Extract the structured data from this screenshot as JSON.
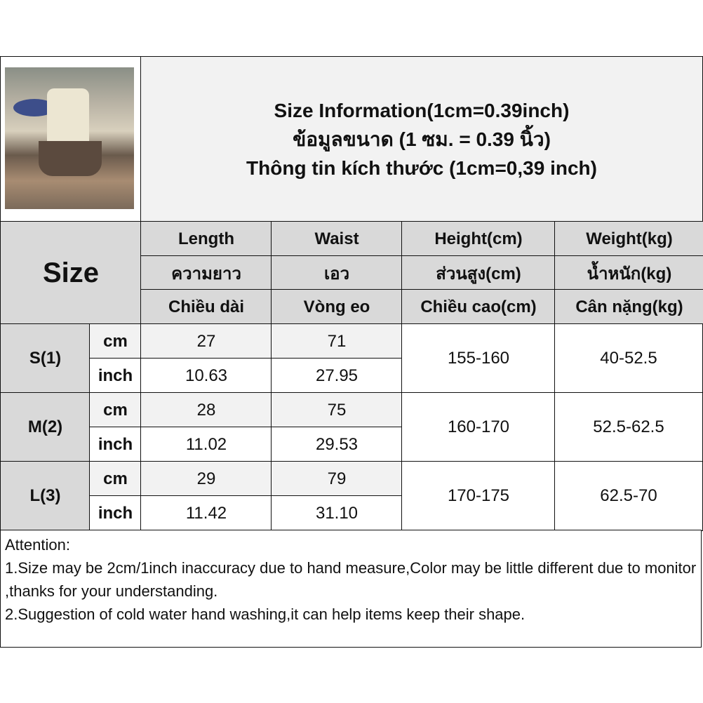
{
  "title": {
    "line1": "Size Information(1cm=0.39inch)",
    "line2": "ข้อมูลขนาด (1 ซม. = 0.39 นิ้ว)",
    "line3": "Thông tin kích thước (1cm=0,39 inch)"
  },
  "header": {
    "size_label": "Size",
    "columns": [
      {
        "en": "Length",
        "th": "ความยาว",
        "vi": "Chiều dài"
      },
      {
        "en": "Waist",
        "th": "เอว",
        "vi": "Vòng eo"
      },
      {
        "en": "Height(cm)",
        "th": "ส่วนสูง(cm)",
        "vi": "Chiều cao(cm)"
      },
      {
        "en": "Weight(kg)",
        "th": "น้ำหนัก(kg)",
        "vi": "Cân nặng(kg)"
      }
    ]
  },
  "rows": [
    {
      "size": "S(1)",
      "cm_label": "cm",
      "inch_label": "inch",
      "length_cm": "27",
      "length_inch": "10.63",
      "waist_cm": "71",
      "waist_inch": "27.95",
      "height": "155-160",
      "weight": "40-52.5"
    },
    {
      "size": "M(2)",
      "cm_label": "cm",
      "inch_label": "inch",
      "length_cm": "28",
      "length_inch": "11.02",
      "waist_cm": "75",
      "waist_inch": "29.53",
      "height": "160-170",
      "weight": "52.5-62.5"
    },
    {
      "size": "L(3)",
      "cm_label": "cm",
      "inch_label": "inch",
      "length_cm": "29",
      "length_inch": "11.42",
      "waist_cm": "79",
      "waist_inch": "31.10",
      "height": "170-175",
      "weight": "62.5-70"
    }
  ],
  "attention": {
    "heading": "Attention:",
    "line1": "1.Size may be 2cm/1inch inaccuracy due to hand measure,Color may be little different due to monitor ,thanks for your understanding.",
    "line2": "2.Suggestion of cold water hand washing,it can help items keep their shape."
  },
  "colors": {
    "header_bg": "#d9d9d9",
    "light_bg": "#f2f2f2",
    "border": "#111111"
  }
}
